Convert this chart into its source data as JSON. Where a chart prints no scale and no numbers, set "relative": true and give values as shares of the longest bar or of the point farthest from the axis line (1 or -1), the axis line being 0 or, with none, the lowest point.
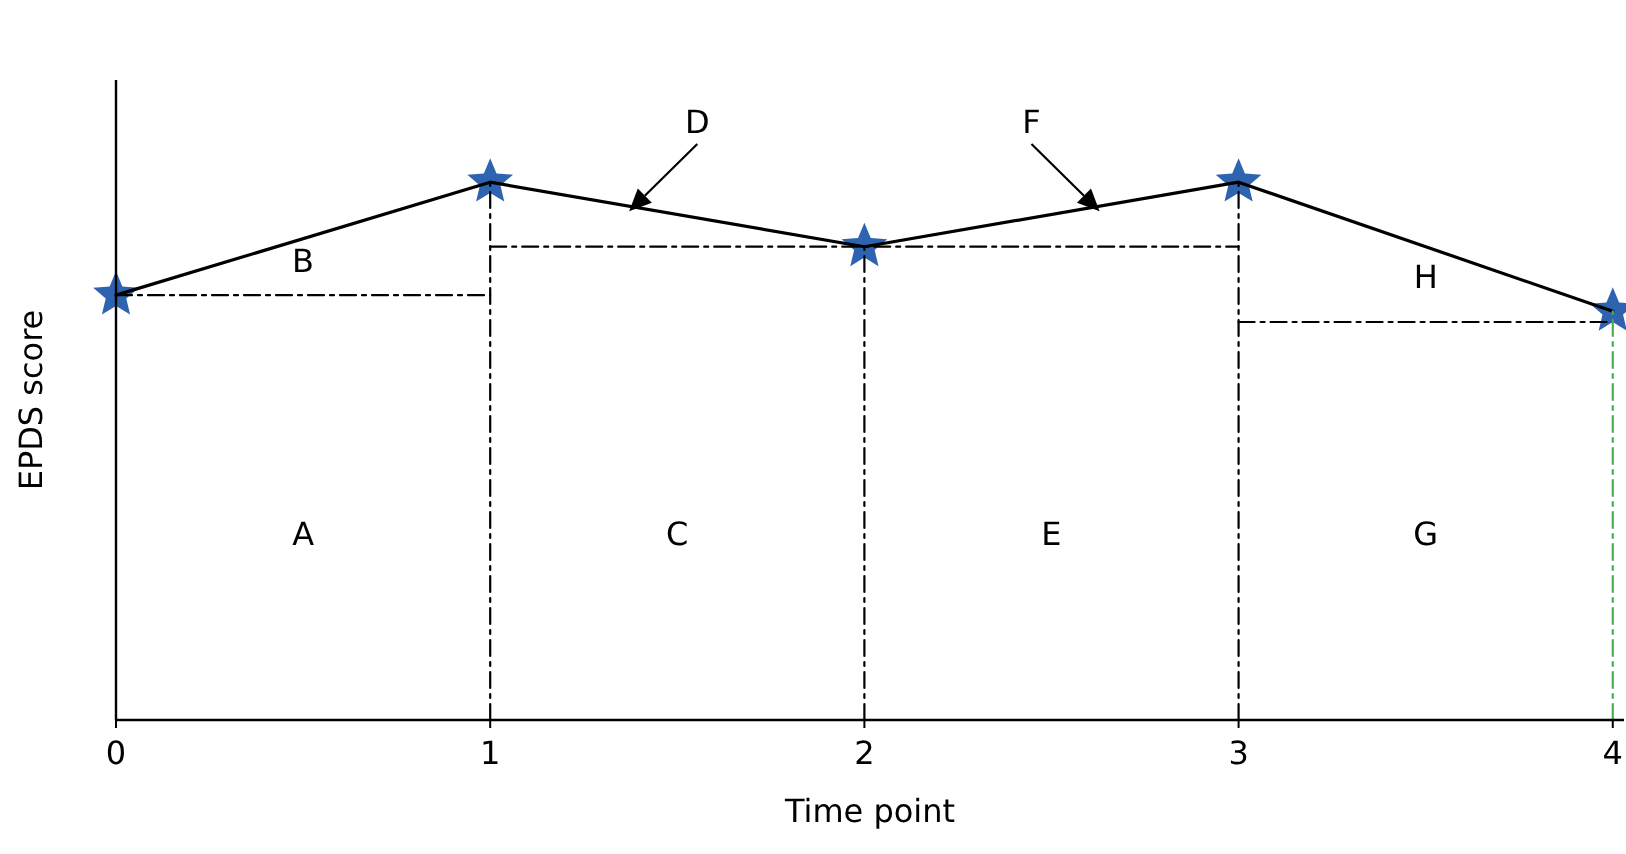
{
  "chart_data": {
    "type": "line",
    "relative": true,
    "xlabel": "Time point",
    "ylabel": "EPDS score",
    "x": [
      0,
      1,
      2,
      3,
      4
    ],
    "xlim": [
      0,
      4.03
    ],
    "xticks": [
      0,
      1,
      2,
      3,
      4
    ],
    "grid": false,
    "legend": false,
    "series": [
      {
        "color": "#000000",
        "values": [
          0.79,
          1.0,
          0.88,
          1.0,
          0.76
        ],
        "marker": "none",
        "line_style": "solid"
      },
      {
        "type": "scatter",
        "color": "#2e63b0",
        "values": [
          0.79,
          1.0,
          0.88,
          1.0,
          0.76
        ],
        "marker": "star"
      },
      {
        "type": "line",
        "color": "#000000",
        "x": [
          0,
          1
        ],
        "values": [
          0.79,
          0.79
        ],
        "marker": "none",
        "line_style": "dashed"
      },
      {
        "type": "line",
        "color": "#000000",
        "x": [
          1,
          3
        ],
        "values": [
          0.88,
          0.88
        ],
        "marker": "none",
        "line_style": "dashed"
      },
      {
        "type": "line",
        "color": "#000000",
        "x": [
          3,
          4
        ],
        "values": [
          0.74,
          0.74
        ],
        "marker": "none",
        "line_style": "dashed"
      },
      {
        "type": "line",
        "color": "#000000",
        "x": [
          1,
          1
        ],
        "values": [
          0,
          1.0
        ],
        "marker": "none",
        "line_style": "dashed"
      },
      {
        "type": "line",
        "color": "#000000",
        "x": [
          2,
          2
        ],
        "values": [
          0,
          0.88
        ],
        "marker": "none",
        "line_style": "dashed"
      },
      {
        "type": "line",
        "color": "#000000",
        "x": [
          3,
          3
        ],
        "values": [
          0,
          1.0
        ],
        "marker": "none",
        "line_style": "dashed"
      },
      {
        "type": "line",
        "color": "#4caf50",
        "x": [
          4,
          4
        ],
        "values": [
          0,
          0.76
        ],
        "marker": "none",
        "line_style": "dashed"
      }
    ],
    "annotations": [
      "A",
      "B",
      "C",
      "D",
      "E",
      "F",
      "G",
      "H"
    ]
  }
}
